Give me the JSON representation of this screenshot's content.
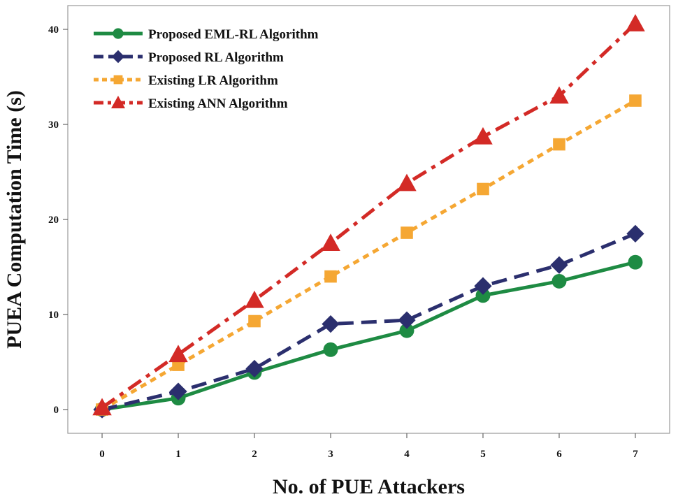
{
  "chart_data": {
    "type": "line",
    "title": "",
    "xlabel": "No. of PUE Attackers",
    "ylabel": "PUEA Computation Time (s)",
    "x": [
      0,
      1,
      2,
      3,
      4,
      5,
      6,
      7
    ],
    "xlim": [
      -0.45,
      7.45
    ],
    "ylim": [
      -2.5,
      42.5
    ],
    "yticks": [
      0,
      10,
      20,
      30,
      40
    ],
    "grid": false,
    "legend_position": "top-left",
    "series": [
      {
        "name": "Proposed EML-RL Algorithm",
        "values": [
          0,
          1.2,
          3.9,
          6.3,
          8.3,
          12.0,
          13.5,
          15.5
        ],
        "color": "#1e8b43",
        "marker": "circle",
        "line_style": "solid"
      },
      {
        "name": "Proposed RL Algorithm",
        "values": [
          0,
          1.9,
          4.3,
          9.0,
          9.4,
          13.0,
          15.2,
          18.5
        ],
        "color": "#2b2f6e",
        "marker": "diamond",
        "line_style": "dashed"
      },
      {
        "name": "Existing LR Algorithm",
        "values": [
          0,
          4.7,
          9.3,
          14.0,
          18.6,
          23.2,
          27.9,
          32.5
        ],
        "color": "#f5a733",
        "marker": "square",
        "line_style": "dotted"
      },
      {
        "name": "Existing ANN Algorithm",
        "values": [
          0.2,
          5.8,
          11.5,
          17.5,
          23.8,
          28.7,
          33.0,
          40.6
        ],
        "color": "#d32a26",
        "marker": "triangle",
        "line_style": "dashdot"
      }
    ]
  }
}
